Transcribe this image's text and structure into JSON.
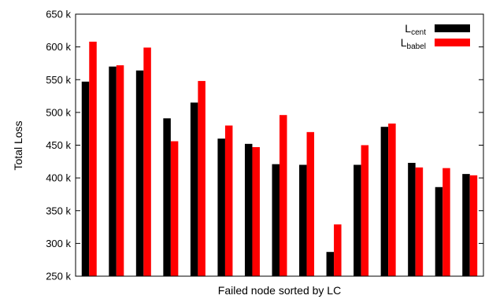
{
  "chart_data": {
    "type": "bar",
    "title": "",
    "xlabel": "Failed node sorted by LC",
    "ylabel": "Total Loss",
    "ylim": [
      250000,
      650000
    ],
    "yticks": [
      {
        "value": 250000,
        "label": "250 k"
      },
      {
        "value": 300000,
        "label": "300 k"
      },
      {
        "value": 350000,
        "label": "350 k"
      },
      {
        "value": 400000,
        "label": "400 k"
      },
      {
        "value": 450000,
        "label": "450 k"
      },
      {
        "value": 500000,
        "label": "500 k"
      },
      {
        "value": 550000,
        "label": "550 k"
      },
      {
        "value": 600000,
        "label": "600 k"
      },
      {
        "value": 650000,
        "label": "650 k"
      }
    ],
    "grid": false,
    "legend_position": "top-right",
    "series": [
      {
        "base": "L",
        "sub": "cent",
        "color": "#000000",
        "values": [
          547000,
          570000,
          564000,
          491000,
          515000,
          460000,
          452000,
          421000,
          420000,
          287000,
          420000,
          478000,
          423000,
          386000,
          406000
        ]
      },
      {
        "base": "L",
        "sub": "babel",
        "color": "#ff0000",
        "values": [
          608000,
          572000,
          599000,
          456000,
          548000,
          480000,
          447000,
          496000,
          470000,
          329000,
          450000,
          483000,
          416000,
          415000,
          404000
        ]
      }
    ]
  }
}
